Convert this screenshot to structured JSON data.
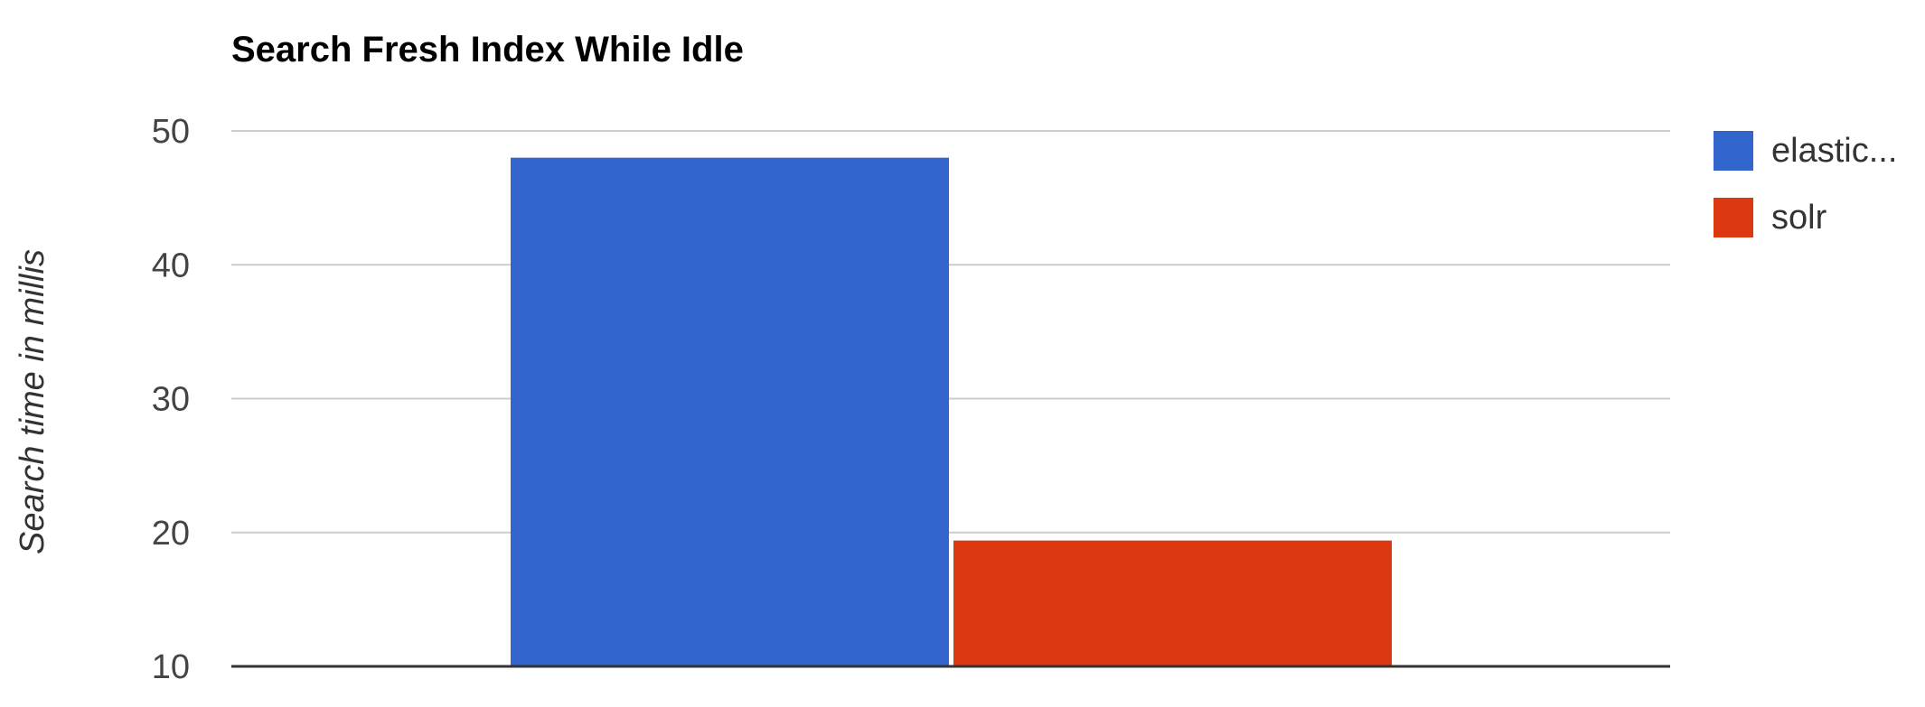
{
  "chart_data": {
    "type": "bar",
    "title": "Search Fresh Index While Idle",
    "xlabel": "",
    "ylabel": "Search time in millis",
    "ylim": [
      10,
      50
    ],
    "yticks": [
      10,
      20,
      30,
      40,
      50
    ],
    "grid": true,
    "legend_position": "right",
    "categories": [
      ""
    ],
    "series": [
      {
        "name": "elastic...",
        "color": "#3366cc",
        "values": [
          48
        ]
      },
      {
        "name": "solr",
        "color": "#dc3912",
        "values": [
          19.4
        ]
      }
    ]
  }
}
